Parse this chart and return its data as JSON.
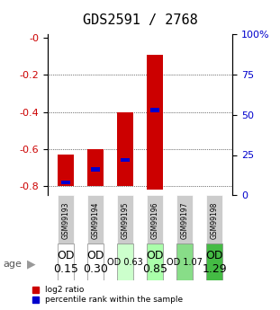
{
  "title": "GDS2591 / 2768",
  "samples": [
    "GSM99193",
    "GSM99194",
    "GSM99195",
    "GSM99196",
    "GSM99197",
    "GSM99198"
  ],
  "red_bar_top": [
    -0.63,
    -0.6,
    -0.4,
    -0.09,
    0.0,
    0.0
  ],
  "red_bar_bottom": [
    -0.8,
    -0.8,
    -0.8,
    -0.82,
    0.0,
    0.0
  ],
  "blue_bar_values": [
    -0.79,
    -0.72,
    -0.67,
    -0.4,
    0.0,
    0.0
  ],
  "blue_bar_heights": [
    0.02,
    0.02,
    0.02,
    0.02,
    0.0,
    0.0
  ],
  "has_red": [
    true,
    true,
    true,
    true,
    false,
    false
  ],
  "has_blue": [
    true,
    true,
    true,
    true,
    false,
    false
  ],
  "od_values": [
    "OD\n0.15",
    "OD\n0.30",
    "OD 0.63",
    "OD\n0.85",
    "OD 1.07",
    "OD\n1.29"
  ],
  "od_fontsize": [
    9,
    9,
    7,
    9,
    7,
    9
  ],
  "od_bg_colors": [
    "#ffffff",
    "#ffffff",
    "#ccffcc",
    "#aaffaa",
    "#88dd88",
    "#44bb44"
  ],
  "ylim_left": [
    -0.85,
    0.02
  ],
  "ylim_right": [
    0,
    100
  ],
  "yticks_left": [
    0,
    -0.2,
    -0.4,
    -0.6,
    -0.8
  ],
  "yticks_right": [
    0,
    25,
    50,
    75,
    100
  ],
  "bar_color_red": "#cc0000",
  "bar_color_blue": "#0000cc",
  "bar_width": 0.55,
  "title_fontsize": 11,
  "tick_label_color_left": "#cc0000",
  "tick_label_color_right": "#0000cc",
  "legend_red_label": "log2 ratio",
  "legend_blue_label": "percentile rank within the sample",
  "age_label": "age",
  "sample_area_color": "#cccccc",
  "grid_lines": [
    -0.2,
    -0.4,
    -0.6,
    -0.8
  ]
}
